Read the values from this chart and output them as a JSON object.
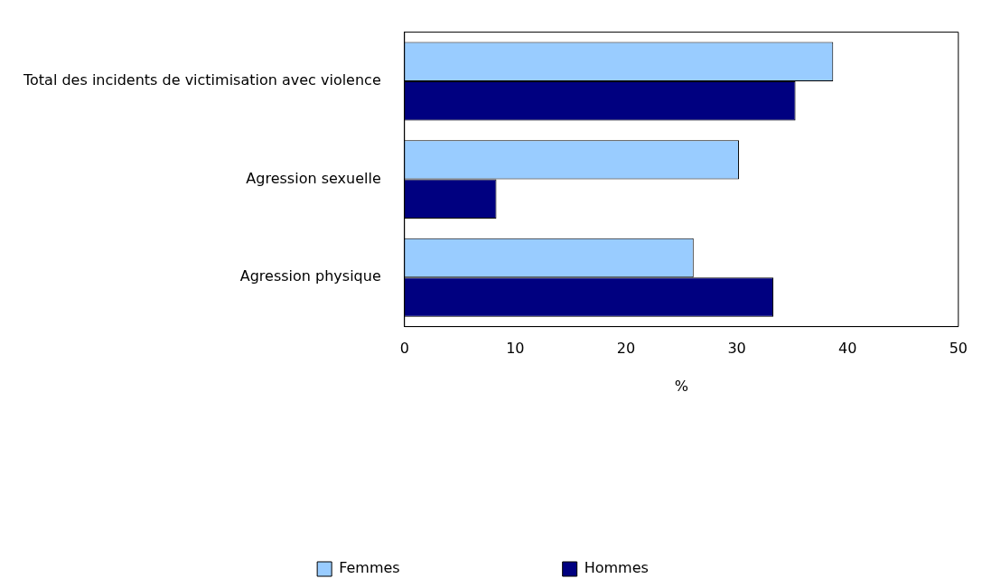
{
  "chart_data": {
    "type": "bar",
    "orientation": "horizontal",
    "xlabel": "%",
    "categories": [
      "Total des incidents de victimisation avec violence",
      "Agression sexuelle",
      "Agression physique"
    ],
    "series": [
      {
        "name": "Femmes",
        "color": "#99ccff",
        "values": [
          38.7,
          30.2,
          26.1
        ]
      },
      {
        "name": "Hommes",
        "color": "#000080",
        "values": [
          35.3,
          8.3,
          33.3
        ]
      }
    ],
    "xlim": [
      0,
      50
    ],
    "xticks": [
      0,
      10,
      20,
      30,
      40,
      50
    ],
    "grid": false,
    "legend": "bottom"
  }
}
